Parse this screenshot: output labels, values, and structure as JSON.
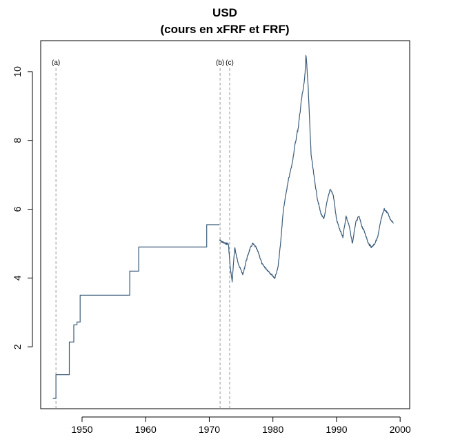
{
  "chart_data": {
    "type": "line",
    "title": "USD",
    "subtitle": "(cours en xFRF et FRF)",
    "xlabel": "",
    "ylabel": "",
    "xlim": [
      1943.5,
      2001.5
    ],
    "ylim": [
      0.2,
      10.9
    ],
    "x_ticks": [
      1950,
      1960,
      1970,
      1980,
      1990,
      2000
    ],
    "x_tick_labels": [
      "1950",
      "1960",
      "1970",
      "1980",
      "1990",
      "2000"
    ],
    "y_ticks": [
      2,
      4,
      6,
      8,
      10
    ],
    "y_tick_labels": [
      "2",
      "4",
      "6",
      "8",
      "10"
    ],
    "grid": false,
    "line_color": "#3b5b78",
    "annotation_color": "#9a9a9a",
    "annotations": [
      {
        "x": 1945.9,
        "label": "(a)"
      },
      {
        "x": 1971.7,
        "label": "(b)"
      },
      {
        "x": 1973.2,
        "label": "(c)"
      }
    ],
    "series": [
      {
        "step": true,
        "points": [
          [
            1945.4,
            0.5
          ],
          [
            1945.9,
            0.5
          ],
          [
            1945.9,
            1.19
          ],
          [
            1948.0,
            1.19
          ],
          [
            1948.0,
            2.14
          ],
          [
            1948.7,
            2.14
          ],
          [
            1948.7,
            2.64
          ],
          [
            1949.2,
            2.64
          ],
          [
            1949.2,
            2.72
          ],
          [
            1949.7,
            2.72
          ],
          [
            1949.7,
            3.5
          ],
          [
            1957.5,
            3.5
          ],
          [
            1957.5,
            4.2
          ],
          [
            1958.9,
            4.2
          ],
          [
            1958.9,
            4.9
          ],
          [
            1969.6,
            4.9
          ],
          [
            1969.6,
            5.55
          ],
          [
            1971.6,
            5.55
          ]
        ]
      },
      {
        "step": false,
        "points": [
          [
            1971.6,
            5.1
          ],
          [
            1972.0,
            5.05
          ],
          [
            1972.5,
            5.0
          ],
          [
            1973.0,
            5.0
          ],
          [
            1973.3,
            4.3
          ],
          [
            1973.6,
            3.9
          ],
          [
            1974.0,
            4.9
          ],
          [
            1974.3,
            4.6
          ],
          [
            1974.8,
            4.3
          ],
          [
            1975.3,
            4.1
          ],
          [
            1975.8,
            4.5
          ],
          [
            1976.3,
            4.8
          ],
          [
            1976.8,
            5.0
          ],
          [
            1977.3,
            4.9
          ],
          [
            1977.8,
            4.7
          ],
          [
            1978.3,
            4.4
          ],
          [
            1978.8,
            4.3
          ],
          [
            1979.3,
            4.2
          ],
          [
            1979.8,
            4.1
          ],
          [
            1980.3,
            4.0
          ],
          [
            1980.8,
            4.3
          ],
          [
            1981.2,
            5.0
          ],
          [
            1981.6,
            5.9
          ],
          [
            1982.0,
            6.4
          ],
          [
            1982.5,
            6.9
          ],
          [
            1983.0,
            7.3
          ],
          [
            1983.5,
            7.9
          ],
          [
            1984.0,
            8.4
          ],
          [
            1984.5,
            9.2
          ],
          [
            1985.0,
            9.8
          ],
          [
            1985.2,
            10.5
          ],
          [
            1985.5,
            9.7
          ],
          [
            1986.0,
            7.6
          ],
          [
            1986.5,
            6.9
          ],
          [
            1987.0,
            6.3
          ],
          [
            1987.5,
            5.9
          ],
          [
            1988.0,
            5.7
          ],
          [
            1988.5,
            6.2
          ],
          [
            1989.0,
            6.6
          ],
          [
            1989.5,
            6.4
          ],
          [
            1990.0,
            5.7
          ],
          [
            1990.5,
            5.4
          ],
          [
            1991.0,
            5.2
          ],
          [
            1991.5,
            5.8
          ],
          [
            1992.0,
            5.5
          ],
          [
            1992.5,
            5.0
          ],
          [
            1993.0,
            5.6
          ],
          [
            1993.5,
            5.8
          ],
          [
            1994.0,
            5.5
          ],
          [
            1994.5,
            5.3
          ],
          [
            1995.0,
            5.0
          ],
          [
            1995.5,
            4.9
          ],
          [
            1996.0,
            5.0
          ],
          [
            1996.5,
            5.2
          ],
          [
            1997.0,
            5.7
          ],
          [
            1997.5,
            6.0
          ],
          [
            1998.0,
            5.9
          ],
          [
            1998.5,
            5.7
          ],
          [
            1999.0,
            5.6
          ]
        ]
      }
    ]
  }
}
